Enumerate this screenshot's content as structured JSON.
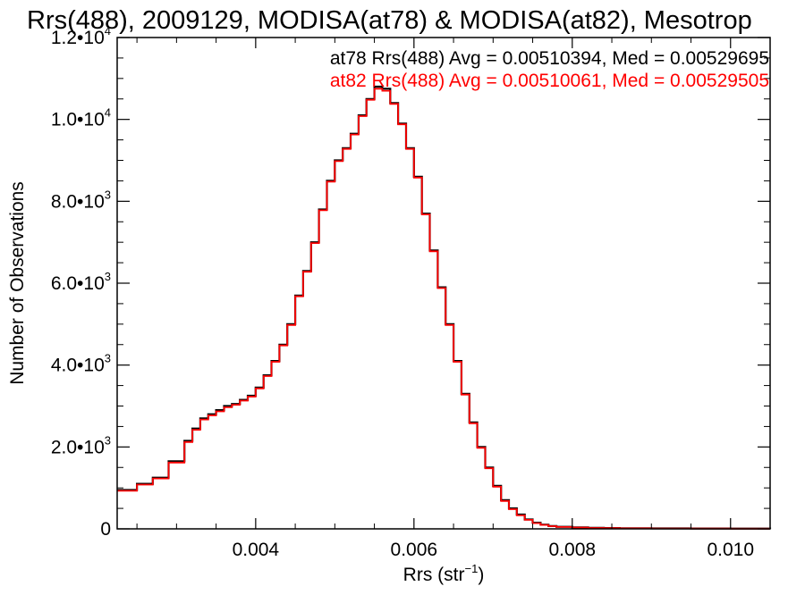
{
  "chart_data": {
    "type": "line",
    "title": "Rrs(488), 2009129, MODISA(at78) & MODISA(at82), Mesotrop",
    "xlabel_main": "Rrs (str",
    "xlabel_sup": "−1",
    "xlabel_end": ")",
    "ylabel": "Number of Observations",
    "xlim": [
      0.00225,
      0.0105
    ],
    "ylim": [
      0,
      12000
    ],
    "x_ticks": [
      {
        "value": 0.004,
        "label": "0.004"
      },
      {
        "value": 0.006,
        "label": "0.006"
      },
      {
        "value": 0.008,
        "label": "0.008"
      },
      {
        "value": 0.01,
        "label": "0.010"
      }
    ],
    "y_ticks": [
      {
        "value": 0,
        "mantissa": "0",
        "exp": ""
      },
      {
        "value": 2000,
        "mantissa": "2.0•10",
        "exp": "3"
      },
      {
        "value": 4000,
        "mantissa": "4.0•10",
        "exp": "3"
      },
      {
        "value": 6000,
        "mantissa": "6.0•10",
        "exp": "3"
      },
      {
        "value": 8000,
        "mantissa": "8.0•10",
        "exp": "3"
      },
      {
        "value": 10000,
        "mantissa": "1.0•10",
        "exp": "4"
      },
      {
        "value": 12000,
        "mantissa": "1.2•10",
        "exp": "4"
      }
    ],
    "legend_placement": "top-right",
    "legend": [
      {
        "text": "at78 Rrs(488) Avg = 0.00510394, Med = 0.00529695",
        "color": "#000000"
      },
      {
        "text": "at82 Rrs(488) Avg = 0.00510061, Med = 0.00529505",
        "color": "#ff0000"
      }
    ],
    "x": [
      0.00225,
      0.0025,
      0.0027,
      0.0029,
      0.0031,
      0.0032,
      0.0033,
      0.0034,
      0.0035,
      0.0036,
      0.0037,
      0.0038,
      0.0039,
      0.004,
      0.0041,
      0.0042,
      0.0043,
      0.0044,
      0.0045,
      0.0046,
      0.0047,
      0.0048,
      0.0049,
      0.005,
      0.0051,
      0.0052,
      0.0053,
      0.0054,
      0.0055,
      0.0056,
      0.0057,
      0.0058,
      0.0059,
      0.006,
      0.0061,
      0.0062,
      0.0063,
      0.0064,
      0.0065,
      0.0066,
      0.0067,
      0.0068,
      0.0069,
      0.007,
      0.0071,
      0.0072,
      0.0073,
      0.0074,
      0.0075,
      0.0076,
      0.0077,
      0.0078,
      0.008,
      0.0082,
      0.0084,
      0.0086,
      0.009,
      0.0095,
      0.01,
      0.0105
    ],
    "series": [
      {
        "name": "at78",
        "color": "#000000",
        "values": [
          950,
          1100,
          1250,
          1650,
          2150,
          2450,
          2700,
          2800,
          2900,
          3000,
          3050,
          3150,
          3250,
          3450,
          3750,
          4100,
          4500,
          5000,
          5700,
          6300,
          7000,
          7800,
          8500,
          9000,
          9300,
          9650,
          10100,
          10500,
          10800,
          10750,
          10400,
          9900,
          9300,
          8600,
          7700,
          6800,
          5900,
          5000,
          4100,
          3300,
          2600,
          2000,
          1500,
          1050,
          700,
          500,
          350,
          230,
          150,
          100,
          70,
          50,
          35,
          25,
          20,
          15,
          10,
          8,
          6,
          5
        ]
      },
      {
        "name": "at82",
        "color": "#ff0000",
        "values": [
          930,
          1080,
          1230,
          1620,
          2120,
          2420,
          2670,
          2770,
          2870,
          2970,
          3030,
          3130,
          3230,
          3430,
          3730,
          4080,
          4480,
          4980,
          5680,
          6280,
          6980,
          7780,
          8480,
          8980,
          9280,
          9630,
          10080,
          10480,
          10750,
          10700,
          10380,
          9880,
          9280,
          8580,
          7680,
          6780,
          5880,
          4980,
          4080,
          3280,
          2580,
          1980,
          1480,
          1030,
          680,
          480,
          330,
          220,
          140,
          95,
          65,
          45,
          32,
          22,
          18,
          13,
          9,
          7,
          5,
          4
        ]
      }
    ]
  }
}
